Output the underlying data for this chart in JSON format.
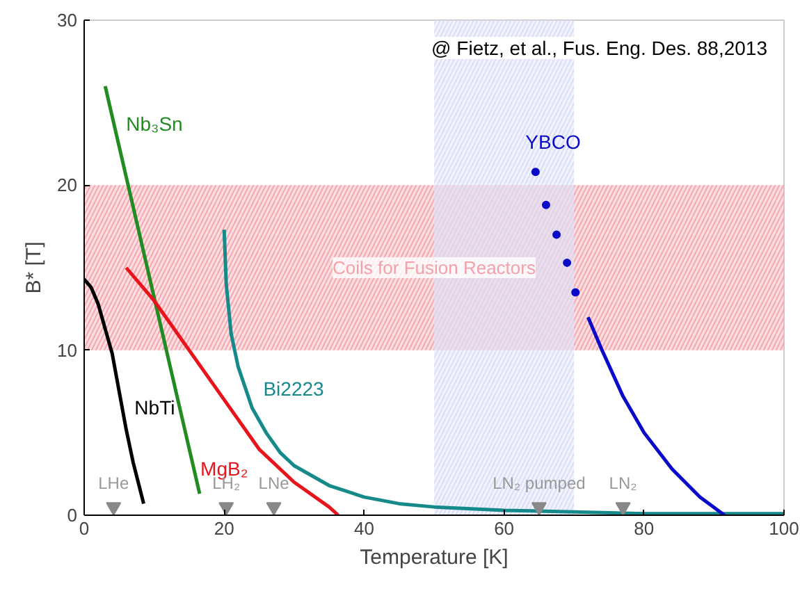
{
  "chart_data": {
    "type": "line",
    "xlabel": "Temperature [K]",
    "ylabel": "B* [T]",
    "xlim": [
      0,
      100
    ],
    "ylim": [
      0,
      30
    ],
    "xticks": [
      0,
      20,
      40,
      60,
      80,
      100
    ],
    "yticks": [
      0,
      10,
      20,
      30
    ],
    "grid": false,
    "marker": "none",
    "line_style": "solid",
    "series": [
      {
        "name": "NbTi",
        "color": "#000000",
        "x": [
          0,
          1,
          2,
          3,
          4,
          5,
          6,
          7,
          8.5
        ],
        "values": [
          14.3,
          13.8,
          12.8,
          11.3,
          9.8,
          7.5,
          5.2,
          3.2,
          0.7
        ]
      },
      {
        "name": "Nb₃Sn",
        "color": "#228b22",
        "x": [
          3,
          16.5
        ],
        "values": [
          26,
          1.3
        ]
      },
      {
        "name": "MgB₂",
        "color": "#e8141c",
        "x": [
          6,
          10,
          15,
          20,
          25,
          30,
          35,
          36.3
        ],
        "values": [
          15,
          13,
          10,
          7,
          4,
          2,
          0.5,
          0
        ]
      },
      {
        "name": "Bi2223",
        "color": "#16898a",
        "x": [
          20,
          20.3,
          21,
          22,
          24,
          26,
          28,
          30,
          35,
          40,
          45,
          50,
          60,
          70,
          80,
          100
        ],
        "values": [
          17.3,
          14,
          11,
          9,
          6.5,
          5,
          3.8,
          3,
          1.8,
          1.1,
          0.7,
          0.5,
          0.3,
          0.2,
          0.1,
          0.1
        ]
      },
      {
        "name": "YBCO",
        "color": "#0a0ac8",
        "x": [
          72,
          74,
          77,
          80,
          84,
          88,
          91.5
        ],
        "values": [
          12,
          10,
          7.2,
          5,
          2.8,
          1.1,
          0
        ]
      },
      {
        "type": "scatter",
        "marker": "circle",
        "color": "#0a0ac8",
        "x": [
          64.5,
          66,
          67.5,
          69,
          70.2
        ],
        "values": [
          20.8,
          18.8,
          17,
          15.3,
          13.5
        ]
      },
      {
        "type": "scatter",
        "marker": "triangle",
        "color": "#888888",
        "x": [
          4.2,
          20.3,
          27.1,
          65,
          77
        ],
        "values": [
          0.5,
          0.5,
          0.5,
          0.5,
          0.5
        ],
        "value_labels": [
          "LHe",
          "LH₂",
          "LNe",
          "LN₂ pumped",
          "LN₂"
        ]
      }
    ],
    "bands": [
      {
        "axis": "y",
        "from": 10,
        "to": 20,
        "label": "Coils for Fusion Reactors",
        "color": "#f4a0a8"
      },
      {
        "axis": "x",
        "from": 50,
        "to": 70,
        "color": "#d8dcf5"
      }
    ],
    "annotations": [
      "@ Fietz, et al., Fus. Eng. Des. 88,2013"
    ]
  }
}
